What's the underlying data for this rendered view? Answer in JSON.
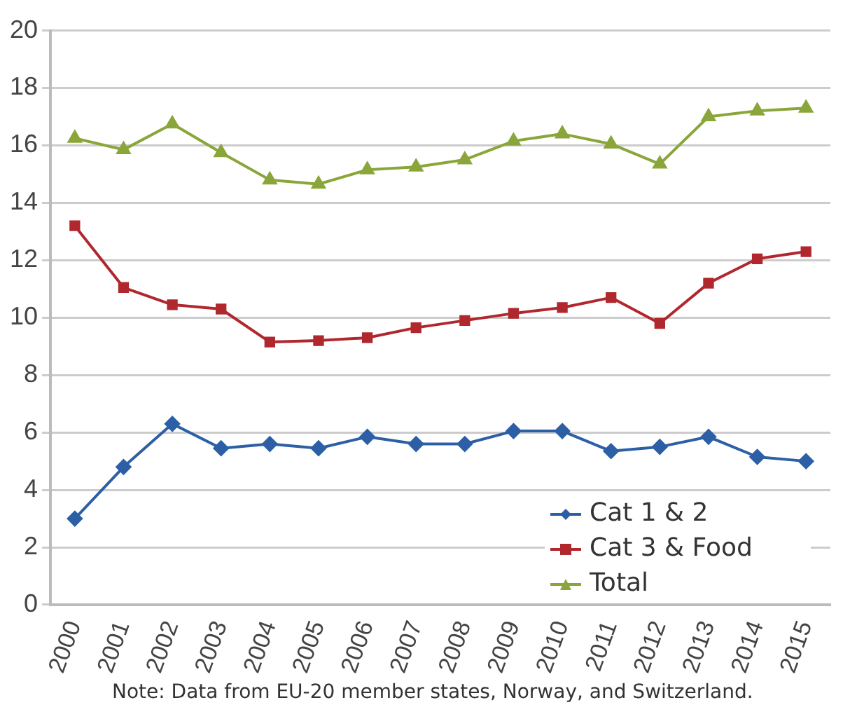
{
  "chart_data": {
    "type": "line",
    "categories": [
      "2000",
      "2001",
      "2002",
      "2003",
      "2004",
      "2005",
      "2006",
      "2007",
      "2008",
      "2009",
      "2010",
      "2011",
      "2012",
      "2013",
      "2014",
      "2015"
    ],
    "series": [
      {
        "name": "Cat 1 & 2",
        "color": "#2d5fa6",
        "marker": "diamond",
        "values": [
          3.0,
          4.8,
          6.3,
          5.45,
          5.6,
          5.45,
          5.85,
          5.6,
          5.6,
          6.05,
          6.05,
          5.35,
          5.5,
          5.85,
          5.15,
          5.0
        ]
      },
      {
        "name": "Cat 3 & Food",
        "color": "#b0282e",
        "marker": "square",
        "values": [
          13.2,
          11.05,
          10.45,
          10.3,
          9.15,
          9.2,
          9.3,
          9.65,
          9.9,
          10.15,
          10.35,
          10.7,
          9.8,
          11.2,
          12.05,
          12.3
        ]
      },
      {
        "name": "Total",
        "color": "#8aa63a",
        "marker": "triangle",
        "values": [
          16.25,
          15.85,
          16.75,
          15.75,
          14.8,
          14.65,
          15.15,
          15.25,
          15.5,
          16.15,
          16.4,
          16.05,
          15.35,
          17.0,
          17.2,
          17.3
        ]
      }
    ],
    "ylim": [
      0,
      20
    ],
    "yticks": [
      0,
      2,
      4,
      6,
      8,
      10,
      12,
      14,
      16,
      18,
      20
    ],
    "grid": "y",
    "legend": "bottom right",
    "line_style": "solid",
    "annotations": [
      "Note: Data from EU-20 member states, Norway, and Switzerland."
    ]
  }
}
